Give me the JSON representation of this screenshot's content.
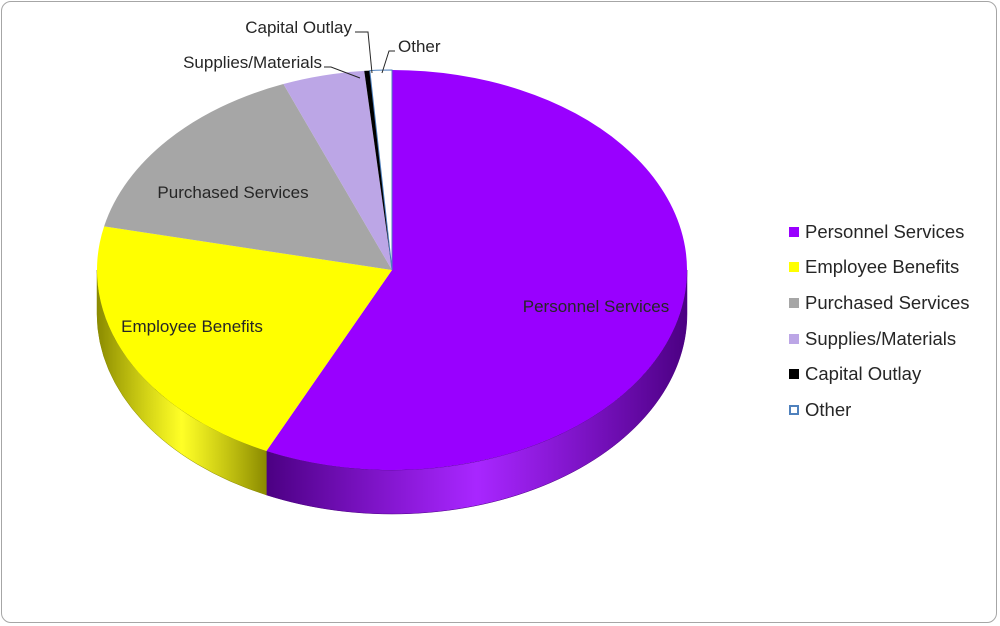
{
  "chart_data": {
    "type": "pie",
    "variant": "3d",
    "legend_position": "right",
    "slices": [
      {
        "label": "Personnel Services",
        "value": 57.0,
        "color": "#9900ff",
        "side_color": "#4b0082"
      },
      {
        "label": "Employee Benefits",
        "value": 21.5,
        "color": "#ffff00",
        "side_color": "#8a8a00"
      },
      {
        "label": "Purchased Services",
        "value": 15.5,
        "color": "#a6a6a6",
        "side_color": "#5a5a5a"
      },
      {
        "label": "Supplies/Materials",
        "value": 4.5,
        "color": "#bca6e6",
        "side_color": "#7a6a99"
      },
      {
        "label": "Capital Outlay",
        "value": 0.3,
        "color": "#000000",
        "side_color": "#000000"
      },
      {
        "label": "Other",
        "value": 1.2,
        "color": "#ffffff",
        "side_color": "#dcdcdc",
        "outline": "#4f81bd"
      }
    ]
  }
}
